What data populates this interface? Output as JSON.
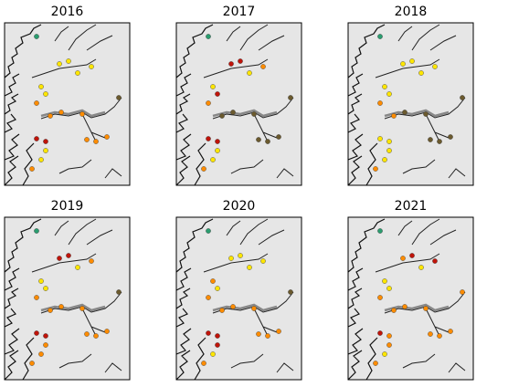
{
  "panels": [
    {
      "title": "2016"
    },
    {
      "title": "2017"
    },
    {
      "title": "2018"
    },
    {
      "title": "2019"
    },
    {
      "title": "2020"
    },
    {
      "title": "2021"
    }
  ]
}
